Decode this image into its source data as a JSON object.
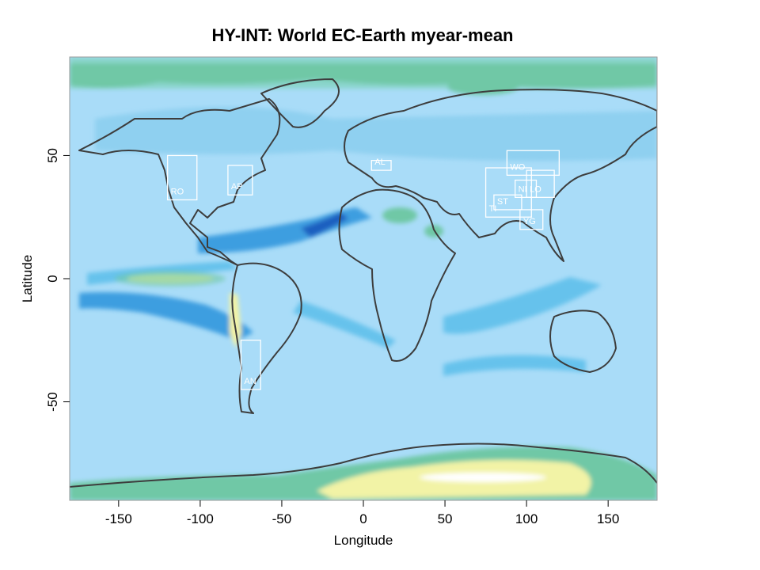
{
  "title": "HY-INT: World EC-Earth myear-mean",
  "axes": {
    "xlabel": "Longitude",
    "ylabel": "Latitude",
    "xlim": [
      -180,
      180
    ],
    "ylim": [
      -90,
      90
    ],
    "xticks": [
      -150,
      -100,
      -50,
      0,
      50,
      100,
      150
    ],
    "yticks": [
      50,
      0,
      -50
    ]
  },
  "colors": {
    "ocean_base": "#a9dcf8",
    "land_low": "#8fd0f0",
    "band_mid": "#66c2ec",
    "band_strong": "#3e9ee0",
    "band_peak": "#1f5fc0",
    "polar_green": "#6fc8a6",
    "polar_teal": "#8ad5cc",
    "dry_yellow": "#f2f3a6",
    "dry_white": "#ffffff",
    "coast": "#3d3d3d",
    "region_box": "#ffffff"
  },
  "regions": [
    {
      "code": "RO",
      "lon": [
        -120,
        -102
      ],
      "lat": [
        32,
        50
      ]
    },
    {
      "code": "AP",
      "lon": [
        -83,
        -68
      ],
      "lat": [
        34,
        46
      ]
    },
    {
      "code": "AL",
      "lon": [
        5,
        17
      ],
      "lat": [
        44,
        48
      ]
    },
    {
      "code": "WO",
      "lon": [
        88,
        120
      ],
      "lat": [
        42,
        52
      ]
    },
    {
      "code": "TI",
      "lon": [
        75,
        103
      ],
      "lat": [
        25,
        45
      ]
    },
    {
      "code": "NI",
      "lon": [
        93,
        106
      ],
      "lat": [
        33,
        40
      ]
    },
    {
      "code": "LO",
      "lon": [
        100,
        117
      ],
      "lat": [
        33,
        44
      ]
    },
    {
      "code": "ST",
      "lon": [
        80,
        97
      ],
      "lat": [
        28,
        34
      ]
    },
    {
      "code": "YG",
      "lon": [
        96,
        110
      ],
      "lat": [
        20,
        28
      ]
    },
    {
      "code": "AN",
      "lon": [
        -75,
        -63
      ],
      "lat": [
        -45,
        -25
      ]
    }
  ]
}
